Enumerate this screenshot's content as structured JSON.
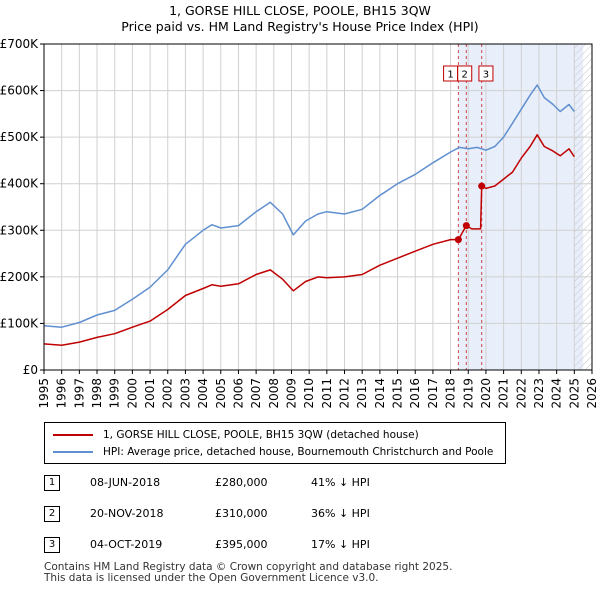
{
  "title": {
    "line1": "1, GORSE HILL CLOSE, POOLE, BH15 3QW",
    "line2": "Price paid vs. HM Land Registry's House Price Index (HPI)"
  },
  "colors": {
    "property": "#c00000",
    "hpi": "#6090d0",
    "highlight": "#e8eefa",
    "grid": "#d0d0d0",
    "marker_line": "#c00000"
  },
  "chart_data": {
    "type": "line",
    "title": "Price paid vs. HM Land Registry's House Price Index (HPI)",
    "xlabel": "",
    "ylabel": "",
    "xlim": [
      1995,
      2026
    ],
    "ylim": [
      0,
      700000
    ],
    "x_ticks": [
      "1995",
      "1996",
      "1997",
      "1998",
      "1999",
      "2000",
      "2001",
      "2002",
      "2003",
      "2004",
      "2005",
      "2006",
      "2007",
      "2008",
      "2009",
      "2010",
      "2011",
      "2012",
      "2013",
      "2014",
      "2015",
      "2016",
      "2017",
      "2018",
      "2019",
      "2020",
      "2021",
      "2022",
      "2023",
      "2024",
      "2025",
      "2026"
    ],
    "y_ticks": [
      {
        "value": 0,
        "label": "£0"
      },
      {
        "value": 100000,
        "label": "£100K"
      },
      {
        "value": 200000,
        "label": "£200K"
      },
      {
        "value": 300000,
        "label": "£300K"
      },
      {
        "value": 400000,
        "label": "£400K"
      },
      {
        "value": 500000,
        "label": "£500K"
      },
      {
        "value": 600000,
        "label": "£600K"
      },
      {
        "value": 700000,
        "label": "£700K"
      }
    ],
    "grid": true,
    "highlight_span": [
      2018.44,
      2025.5
    ],
    "hatch_span": [
      2025.0,
      2026.0
    ],
    "series": [
      {
        "name": "1, GORSE HILL CLOSE, POOLE, BH15 3QW (detached house)",
        "color_key": "property",
        "points": [
          [
            1995.0,
            56000
          ],
          [
            1996.0,
            53000
          ],
          [
            1997.0,
            60000
          ],
          [
            1998.0,
            70000
          ],
          [
            1999.0,
            78000
          ],
          [
            2000.0,
            92000
          ],
          [
            2001.0,
            105000
          ],
          [
            2002.0,
            130000
          ],
          [
            2003.0,
            160000
          ],
          [
            2004.0,
            175000
          ],
          [
            2004.5,
            183000
          ],
          [
            2005.0,
            180000
          ],
          [
            2006.0,
            185000
          ],
          [
            2007.0,
            205000
          ],
          [
            2007.8,
            215000
          ],
          [
            2008.5,
            195000
          ],
          [
            2009.1,
            170000
          ],
          [
            2009.8,
            190000
          ],
          [
            2010.5,
            200000
          ],
          [
            2011.0,
            198000
          ],
          [
            2012.0,
            200000
          ],
          [
            2013.0,
            205000
          ],
          [
            2014.0,
            225000
          ],
          [
            2015.0,
            240000
          ],
          [
            2016.0,
            255000
          ],
          [
            2017.0,
            270000
          ],
          [
            2018.0,
            280000
          ],
          [
            2018.44,
            280000
          ],
          [
            2018.89,
            310000
          ],
          [
            2019.2,
            303000
          ],
          [
            2019.7,
            303000
          ],
          [
            2019.76,
            395000
          ],
          [
            2020.0,
            390000
          ],
          [
            2020.5,
            395000
          ],
          [
            2021.0,
            410000
          ],
          [
            2021.5,
            425000
          ],
          [
            2022.0,
            455000
          ],
          [
            2022.5,
            480000
          ],
          [
            2022.9,
            505000
          ],
          [
            2023.3,
            480000
          ],
          [
            2023.8,
            470000
          ],
          [
            2024.2,
            460000
          ],
          [
            2024.7,
            475000
          ],
          [
            2025.0,
            458000
          ]
        ]
      },
      {
        "name": "HPI: Average price, detached house, Bournemouth Christchurch and Poole",
        "color_key": "hpi",
        "points": [
          [
            1995.0,
            95000
          ],
          [
            1996.0,
            92000
          ],
          [
            1997.0,
            102000
          ],
          [
            1998.0,
            118000
          ],
          [
            1999.0,
            128000
          ],
          [
            2000.0,
            152000
          ],
          [
            2001.0,
            178000
          ],
          [
            2002.0,
            215000
          ],
          [
            2003.0,
            270000
          ],
          [
            2004.0,
            300000
          ],
          [
            2004.5,
            312000
          ],
          [
            2005.0,
            305000
          ],
          [
            2006.0,
            310000
          ],
          [
            2007.0,
            340000
          ],
          [
            2007.8,
            360000
          ],
          [
            2008.5,
            335000
          ],
          [
            2009.1,
            290000
          ],
          [
            2009.8,
            320000
          ],
          [
            2010.5,
            335000
          ],
          [
            2011.0,
            340000
          ],
          [
            2012.0,
            335000
          ],
          [
            2013.0,
            345000
          ],
          [
            2014.0,
            375000
          ],
          [
            2015.0,
            400000
          ],
          [
            2016.0,
            420000
          ],
          [
            2017.0,
            445000
          ],
          [
            2018.0,
            468000
          ],
          [
            2018.5,
            478000
          ],
          [
            2019.0,
            475000
          ],
          [
            2019.5,
            478000
          ],
          [
            2020.0,
            472000
          ],
          [
            2020.5,
            480000
          ],
          [
            2021.0,
            500000
          ],
          [
            2021.5,
            530000
          ],
          [
            2022.0,
            560000
          ],
          [
            2022.5,
            590000
          ],
          [
            2022.9,
            612000
          ],
          [
            2023.3,
            585000
          ],
          [
            2023.8,
            570000
          ],
          [
            2024.2,
            555000
          ],
          [
            2024.7,
            570000
          ],
          [
            2025.0,
            555000
          ]
        ]
      }
    ],
    "sales": [
      {
        "label": "1",
        "x": 2018.44,
        "y": 280000
      },
      {
        "label": "2",
        "x": 2018.89,
        "y": 310000
      },
      {
        "label": "3",
        "x": 2019.76,
        "y": 395000
      }
    ]
  },
  "legend": {
    "items": [
      {
        "label": "1, GORSE HILL CLOSE, POOLE, BH15 3QW (detached house)"
      },
      {
        "label": "HPI: Average price, detached house, Bournemouth Christchurch and Poole"
      }
    ]
  },
  "transactions": [
    {
      "num": "1",
      "date": "08-JUN-2018",
      "price": "£280,000",
      "hpi": "41% ↓ HPI"
    },
    {
      "num": "2",
      "date": "20-NOV-2018",
      "price": "£310,000",
      "hpi": "36% ↓ HPI"
    },
    {
      "num": "3",
      "date": "04-OCT-2019",
      "price": "£395,000",
      "hpi": "17% ↓ HPI"
    }
  ],
  "footer": {
    "line1": "Contains HM Land Registry data © Crown copyright and database right 2025.",
    "line2": "This data is licensed under the Open Government Licence v3.0."
  }
}
